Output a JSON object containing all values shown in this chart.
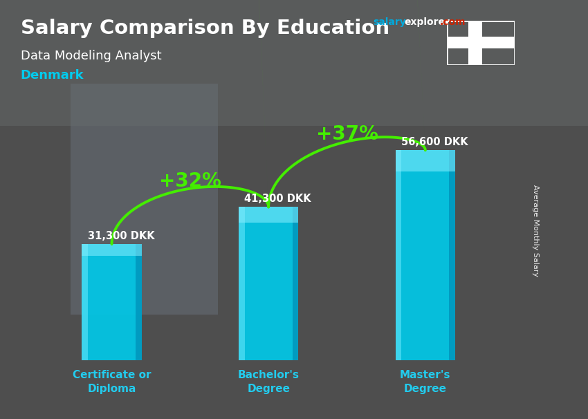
{
  "title": "Salary Comparison By Education",
  "subtitle": "Data Modeling Analyst",
  "country": "Denmark",
  "categories": [
    "Certificate or\nDiploma",
    "Bachelor's\nDegree",
    "Master's\nDegree"
  ],
  "values": [
    31300,
    41300,
    56600
  ],
  "value_labels": [
    "31,300 DKK",
    "41,300 DKK",
    "56,600 DKK"
  ],
  "pct_labels": [
    "+32%",
    "+37%"
  ],
  "bar_color_main": "#00c8e8",
  "bar_color_light": "#55e0f5",
  "bar_color_dark": "#0090b8",
  "title_color": "#ffffff",
  "subtitle_color": "#ffffff",
  "country_color": "#00ccee",
  "value_label_color": "#ffffff",
  "pct_color": "#44ee00",
  "bg_color": "#606060",
  "ylabel": "Average Monthly Salary",
  "salary_color": "#00aadd",
  "explorer_color": "#ffffff",
  "com_color": "#cc0000",
  "arrow_color": "#44ee00",
  "denmark_flag_red": "#c60c30",
  "denmark_flag_white": "#ffffff",
  "bar_width": 0.38,
  "ylim": 70000
}
